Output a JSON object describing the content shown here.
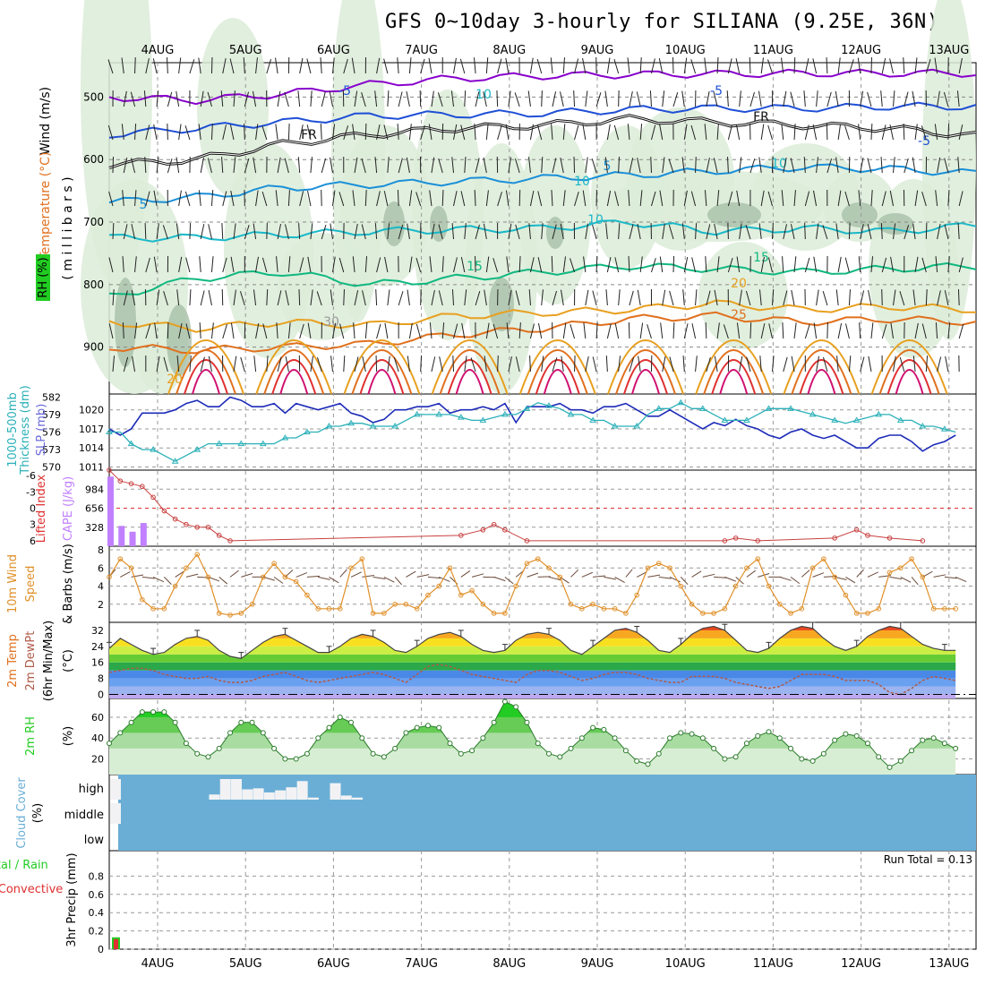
{
  "title": "GFS 0~10day 3-hourly for SILIANA (9.25E, 36N)",
  "colors": {
    "violet": "#8800cc",
    "blue": "#1f4fd6",
    "navy": "#1d2bb8",
    "sky": "#1a8fd8",
    "teal": "#1ab8c8",
    "green": "#10b880",
    "orange": "#e8a020",
    "darkorange": "#e0701e",
    "red": "#e03030",
    "magenta": "#d01070",
    "cyan": "#2ab0b8",
    "lilac": "#c080ff",
    "rh_green": "#22cc22",
    "cloud_blue": "#6aaed6",
    "precip_red": "#e03030"
  },
  "chart_data": [
    {
      "name": "upper-air",
      "type": "contour",
      "x_ticks": [
        "4AUG",
        "5AUG",
        "6AUG",
        "7AUG",
        "8AUG",
        "9AUG",
        "10AUG",
        "11AUG",
        "12AUG",
        "13AUG"
      ],
      "y_ticks": [
        500,
        600,
        700,
        800,
        900
      ],
      "ylim": [
        445,
        975
      ],
      "ylabel_wind": "Wind (m/s)",
      "ylabel_temp": "Temperature (°C)",
      "ylabel_rh": "RH (%)",
      "ylabel_units": "( m i l l i b a r s )",
      "isotherms": [
        {
          "label": "-10",
          "color": "violet",
          "p": [
            500,
            505,
            495,
            480,
            470,
            466,
            464,
            463,
            462,
            462,
            462
          ]
        },
        {
          "label": "-5",
          "color": "blue",
          "p": [
            560,
            550,
            540,
            530,
            528,
            526,
            520,
            518,
            518,
            515,
            515
          ]
        },
        {
          "label": "FR",
          "color": "black",
          "p": [
            608,
            600,
            575,
            560,
            550,
            545,
            535,
            540,
            545,
            550,
            562
          ]
        },
        {
          "label": "5",
          "color": "sky",
          "p": [
            668,
            660,
            645,
            640,
            635,
            630,
            625,
            618,
            612,
            615,
            622
          ]
        },
        {
          "label": "10",
          "color": "teal",
          "p": [
            725,
            725,
            720,
            715,
            712,
            710,
            700,
            715,
            710,
            715,
            705
          ]
        },
        {
          "label": "15",
          "color": "green",
          "p": [
            820,
            790,
            780,
            800,
            790,
            780,
            770,
            775,
            780,
            775,
            770
          ]
        },
        {
          "label": "20",
          "color": "orange",
          "p": [
            860,
            870,
            860,
            865,
            850,
            845,
            840,
            830,
            840,
            835,
            840
          ]
        },
        {
          "label": "25",
          "color": "darkorange",
          "p": [
            900,
            905,
            900,
            895,
            880,
            870,
            855,
            850,
            860,
            855,
            860
          ]
        }
      ],
      "contour_labels": [
        "-5",
        "-5",
        "FR",
        "FR",
        "5",
        "5",
        "10",
        "15",
        "15",
        "20",
        "20",
        "25",
        "-5",
        "30",
        "10",
        "10",
        "10"
      ]
    },
    {
      "name": "slp-thickness",
      "type": "line",
      "x": [
        0,
        0.125,
        0.25,
        0.375,
        0.5,
        0.625,
        0.75,
        0.875,
        1,
        1.125,
        1.25,
        1.375,
        1.5,
        1.625,
        1.75,
        1.875,
        2,
        2.125,
        2.25,
        2.375,
        2.5,
        2.625,
        2.75,
        2.875,
        3,
        3.125,
        3.25,
        3.375,
        3.5,
        3.625,
        3.75,
        3.875,
        4,
        4.125,
        4.25,
        4.375,
        4.5,
        4.625,
        4.75,
        4.875,
        5,
        5.125,
        5.25,
        5.375,
        5.5,
        5.625,
        5.75,
        5.875,
        6,
        6.125,
        6.25,
        6.375,
        6.5,
        6.625,
        6.75,
        6.875,
        7,
        7.125,
        7.25,
        7.375,
        7.5,
        7.625,
        7.75,
        7.875,
        8,
        8.125,
        8.25,
        8.375,
        8.5,
        8.625,
        8.75,
        8.875,
        9,
        9.125,
        9.25,
        9.375,
        9.5,
        9.625
      ],
      "series": [
        {
          "name": "SLP (mb)",
          "color": "navy",
          "ylim": [
            1010.5,
            1022.5
          ],
          "ticks": [
            1011,
            1014,
            1017,
            1020
          ],
          "values": [
            1017,
            1016,
            1017,
            1019.5,
            1019.5,
            1019.5,
            1020,
            1021,
            1021.5,
            1020.5,
            1020.5,
            1022,
            1021.5,
            1020.5,
            1020.5,
            1021,
            1019.5,
            1021,
            1020.5,
            1020,
            1020.5,
            1021,
            1019.5,
            1019,
            1018,
            1018.5,
            1020,
            1020,
            1020.5,
            1020.5,
            1021,
            1019.5,
            1020,
            1020,
            1020.5,
            1020,
            1021,
            1018,
            1020.5,
            1020.5,
            1020.5,
            1021,
            1020,
            1020,
            1019.5,
            1020.5,
            1020.5,
            1021,
            1020,
            1019,
            1019,
            1020,
            1019,
            1018,
            1017,
            1018,
            1017.5,
            1018.5,
            1017.5,
            1017,
            1016,
            1015.5,
            1016.5,
            1017,
            1016,
            1015.5,
            1016,
            1015,
            1014,
            1014,
            1015.5,
            1016,
            1016,
            1015,
            1013.5,
            1014.5,
            1015,
            1016
          ]
        },
        {
          "name": "1000-500mb Thickness (dm)",
          "color": "cyan",
          "ylim": [
            569.5,
            582.5
          ],
          "ticks": [
            570,
            573,
            576,
            579,
            582
          ],
          "values": [
            576,
            576,
            574,
            573,
            573,
            572,
            571,
            572,
            573,
            574,
            574,
            574,
            574,
            574,
            574,
            574,
            575,
            575,
            576,
            576,
            577,
            577,
            577.5,
            577.5,
            577,
            577,
            577,
            578,
            579,
            579,
            579,
            579,
            578.5,
            578,
            578,
            578.5,
            579,
            579,
            580,
            581,
            580.5,
            580,
            579,
            579,
            578,
            578,
            577,
            577,
            577,
            579,
            580,
            580,
            581,
            580,
            580,
            579,
            578,
            578,
            578,
            579,
            580,
            580,
            580,
            579.5,
            579,
            578.5,
            578,
            577.5,
            578,
            578.5,
            579,
            579,
            578,
            578,
            577,
            577,
            576.5,
            576
          ]
        }
      ]
    },
    {
      "name": "cape-lifted-index",
      "type": "bar+line",
      "cape_ylim": [
        0,
        1312
      ],
      "cape_ticks": [
        328,
        656,
        984
      ],
      "cape_label": "CAPE (J/kg)",
      "li_ticks": [
        -6,
        -3,
        0,
        3,
        6
      ],
      "li_label": "Lifted Index",
      "cape_bars": [
        {
          "x": 0,
          "v": 1200
        },
        {
          "x": 0.125,
          "v": 350
        },
        {
          "x": 0.25,
          "v": 250
        },
        {
          "x": 0.375,
          "v": 400
        }
      ],
      "lifted_index": [
        {
          "x": 0,
          "v": -7
        },
        {
          "x": 0.125,
          "v": -5
        },
        {
          "x": 0.25,
          "v": -4.5
        },
        {
          "x": 0.375,
          "v": -4
        },
        {
          "x": 0.5,
          "v": -2
        },
        {
          "x": 0.625,
          "v": 0.5
        },
        {
          "x": 0.75,
          "v": 2
        },
        {
          "x": 0.875,
          "v": 3
        },
        {
          "x": 1,
          "v": 3.5
        },
        {
          "x": 1.125,
          "v": 3.5
        },
        {
          "x": 1.25,
          "v": 5
        },
        {
          "x": 1.375,
          "v": 6
        },
        {
          "x": 4,
          "v": 5
        },
        {
          "x": 4.25,
          "v": 4
        },
        {
          "x": 4.375,
          "v": 3
        },
        {
          "x": 4.5,
          "v": 4
        },
        {
          "x": 4.75,
          "v": 6
        },
        {
          "x": 7,
          "v": 6
        },
        {
          "x": 7.125,
          "v": 5.5
        },
        {
          "x": 7.375,
          "v": 6
        },
        {
          "x": 8.25,
          "v": 5.5
        },
        {
          "x": 8.5,
          "v": 4
        },
        {
          "x": 8.625,
          "v": 5
        },
        {
          "x": 8.875,
          "v": 5.5
        },
        {
          "x": 9.25,
          "v": 6
        }
      ]
    },
    {
      "name": "10m-wind",
      "type": "line",
      "ylabel": "10m Wind Speed & Barbs (m/s)",
      "ylim": [
        0,
        8
      ],
      "ticks": [
        2,
        4,
        6,
        8
      ],
      "values": [
        5,
        7,
        6,
        2.5,
        1.5,
        1.5,
        4,
        6,
        7.5,
        5,
        1,
        0.8,
        1,
        2,
        5,
        6.5,
        5,
        4.5,
        3,
        1.5,
        1.5,
        1.5,
        6,
        7,
        1,
        1,
        2,
        2,
        1.5,
        3,
        4,
        6,
        3,
        3.5,
        2,
        1,
        1,
        4,
        6.5,
        7,
        6,
        5,
        2,
        1.5,
        2,
        1.5,
        1.5,
        1,
        3,
        6,
        6.5,
        6,
        4,
        2,
        1,
        1,
        1.5,
        4,
        6,
        7,
        4,
        2,
        1,
        1.5,
        6,
        7,
        5,
        3,
        1,
        1,
        1.5,
        5.5,
        6,
        7,
        5,
        1.5,
        1.5,
        1.5
      ]
    },
    {
      "name": "2m-temp",
      "type": "line",
      "ylabel": "2m Temp 2m DewPt (6hr Min/Max) (°C)",
      "ylim": [
        -2,
        36
      ],
      "ticks": [
        0,
        8,
        16,
        24,
        32
      ],
      "temp": [
        23,
        28,
        25,
        22,
        20,
        21,
        25,
        28,
        29,
        27,
        22,
        19,
        18,
        22,
        26,
        29,
        30,
        27,
        24,
        21,
        21,
        24,
        28,
        30,
        29,
        26,
        22,
        21,
        24,
        28,
        30,
        31,
        29,
        25,
        22,
        21,
        22,
        27,
        30,
        31,
        30,
        27,
        22,
        20,
        24,
        28,
        32,
        33,
        31,
        27,
        22,
        21,
        25,
        30,
        33,
        34,
        32,
        27,
        22,
        21,
        23,
        28,
        32,
        34,
        33,
        28,
        24,
        22,
        24,
        29,
        32,
        34,
        33,
        29,
        25,
        23,
        22,
        22
      ],
      "dewpt": [
        11,
        12,
        13,
        13,
        12,
        10,
        9,
        8,
        8,
        9,
        7,
        6,
        6,
        7,
        9,
        10,
        11,
        9,
        7,
        6,
        7,
        8,
        9,
        10,
        11,
        10,
        8,
        6,
        10,
        14,
        15,
        14,
        12,
        10,
        9,
        8,
        7,
        6,
        10,
        12,
        12,
        11,
        9,
        7,
        8,
        10,
        11,
        11,
        10,
        8,
        7,
        6,
        6,
        9,
        9,
        9,
        8,
        6,
        5,
        4,
        3,
        4,
        7,
        10,
        10,
        10,
        9,
        7,
        7,
        7,
        5,
        1,
        0,
        3,
        7,
        9,
        8,
        7
      ]
    },
    {
      "name": "2m-rh",
      "type": "area",
      "ylabel": "2m RH (%)",
      "ylim": [
        5,
        78
      ],
      "ticks": [
        20,
        40,
        60
      ],
      "values": [
        35,
        45,
        55,
        65,
        65,
        65,
        55,
        35,
        25,
        22,
        30,
        45,
        55,
        55,
        45,
        30,
        20,
        20,
        25,
        40,
        50,
        60,
        55,
        40,
        25,
        22,
        30,
        45,
        50,
        52,
        50,
        35,
        25,
        28,
        40,
        55,
        75,
        70,
        55,
        35,
        25,
        22,
        30,
        40,
        50,
        48,
        40,
        28,
        18,
        15,
        25,
        40,
        45,
        44,
        40,
        30,
        20,
        22,
        35,
        42,
        46,
        40,
        30,
        20,
        18,
        25,
        38,
        44,
        42,
        35,
        22,
        12,
        18,
        28,
        38,
        40,
        35,
        30
      ]
    },
    {
      "name": "cloud-cover",
      "type": "bar",
      "ylabel": "Cloud Cover (%)",
      "levels": [
        "high",
        "middle",
        "low"
      ],
      "high": [
        {
          "x": 0,
          "v": 1
        },
        {
          "x": 1.125,
          "v": 0.25
        },
        {
          "x": 1.25,
          "v": 1
        },
        {
          "x": 1.375,
          "v": 1
        },
        {
          "x": 1.5,
          "v": 0.5
        },
        {
          "x": 1.625,
          "v": 0.55
        },
        {
          "x": 1.75,
          "v": 0.35
        },
        {
          "x": 1.875,
          "v": 0.45
        },
        {
          "x": 2,
          "v": 0.6
        },
        {
          "x": 2.125,
          "v": 0.9
        },
        {
          "x": 2.25,
          "v": 0.1
        },
        {
          "x": 2.5,
          "v": 0.8
        },
        {
          "x": 2.625,
          "v": 0.2
        },
        {
          "x": 2.75,
          "v": 0.1
        }
      ],
      "middle": [
        {
          "x": 0,
          "v": 1
        }
      ]
    },
    {
      "name": "precip",
      "type": "bar",
      "ylabel": "3hr Precip (mm)",
      "legend_total": "Total / Rain",
      "legend_conv": "Convective",
      "ylim": [
        0,
        1
      ],
      "ticks": [
        0,
        0.2,
        0.4,
        0.6,
        0.8
      ],
      "run_total": "Run Total = 0.13",
      "bars": [
        {
          "x": 0,
          "total": 0.13,
          "conv": 0.11
        }
      ]
    }
  ]
}
